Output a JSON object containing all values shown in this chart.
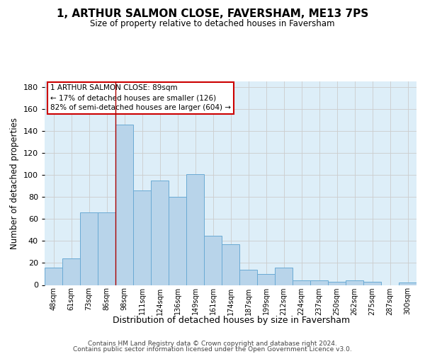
{
  "title": "1, ARTHUR SALMON CLOSE, FAVERSHAM, ME13 7PS",
  "subtitle": "Size of property relative to detached houses in Faversham",
  "xlabel": "Distribution of detached houses by size in Faversham",
  "ylabel": "Number of detached properties",
  "categories": [
    "48sqm",
    "61sqm",
    "73sqm",
    "86sqm",
    "98sqm",
    "111sqm",
    "124sqm",
    "136sqm",
    "149sqm",
    "161sqm",
    "174sqm",
    "187sqm",
    "199sqm",
    "212sqm",
    "224sqm",
    "237sqm",
    "250sqm",
    "262sqm",
    "275sqm",
    "287sqm",
    "300sqm"
  ],
  "values": [
    16,
    24,
    66,
    66,
    146,
    86,
    95,
    80,
    101,
    45,
    37,
    14,
    10,
    16,
    4,
    4,
    3,
    4,
    3,
    0,
    2
  ],
  "bar_color": "#b8d4ea",
  "bar_edge_color": "#6aaad4",
  "grid_color": "#cccccc",
  "background_color": "#ddeef8",
  "red_line_x": 3.5,
  "annotation_lines": [
    "1 ARTHUR SALMON CLOSE: 89sqm",
    "← 17% of detached houses are smaller (126)",
    "82% of semi-detached houses are larger (604) →"
  ],
  "annotation_box_color": "#ffffff",
  "annotation_box_edge_color": "#cc0000",
  "ylim": [
    0,
    185
  ],
  "yticks": [
    0,
    20,
    40,
    60,
    80,
    100,
    120,
    140,
    160,
    180
  ],
  "footer_line1": "Contains HM Land Registry data © Crown copyright and database right 2024.",
  "footer_line2": "Contains public sector information licensed under the Open Government Licence v3.0."
}
